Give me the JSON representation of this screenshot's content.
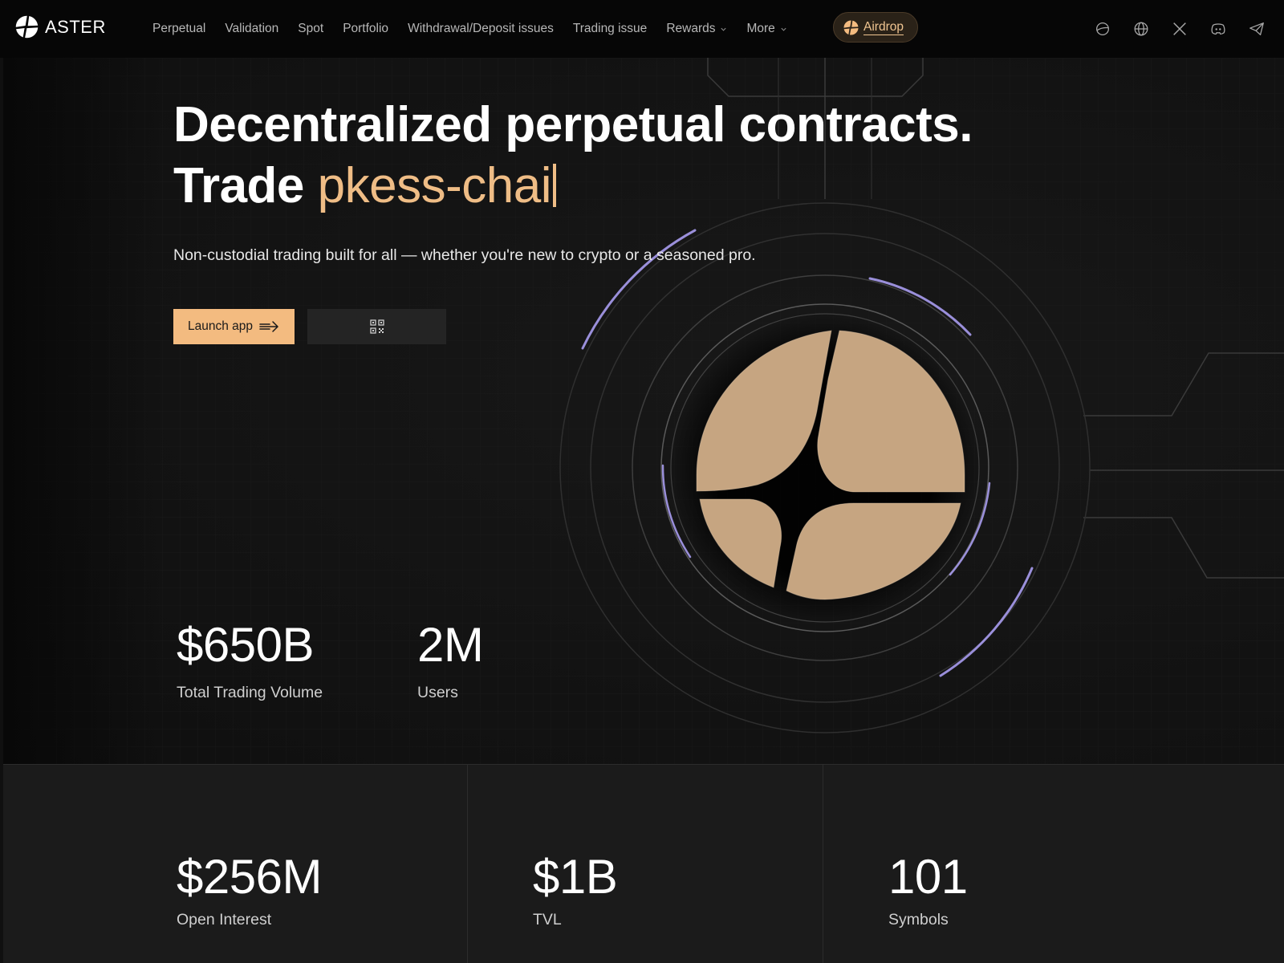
{
  "brand": {
    "name": "ASTER",
    "logo_icon": "aster-logo-icon",
    "accent": "#f3bb80"
  },
  "nav": {
    "links": [
      {
        "label": "Perpetual",
        "dropdown": false
      },
      {
        "label": "Validation",
        "dropdown": false
      },
      {
        "label": "Spot",
        "dropdown": false
      },
      {
        "label": "Portfolio",
        "dropdown": false
      },
      {
        "label": "Withdrawal/Deposit issues",
        "dropdown": false
      },
      {
        "label": "Trading issue",
        "dropdown": false
      },
      {
        "label": "Rewards",
        "dropdown": true
      },
      {
        "label": "More",
        "dropdown": true
      }
    ],
    "airdrop_label": "Airdrop",
    "icons": [
      "planet-icon",
      "globe-icon",
      "x-twitter-icon",
      "discord-icon",
      "telegram-icon"
    ]
  },
  "hero": {
    "headline_line1": "Decentralized perpetual contracts.",
    "headline_prefix": "Trade",
    "headline_typed": "pkess-chai",
    "subtitle": "Non-custodial trading built for all — whether you're new to crypto or a seasoned pro.",
    "launch_label": "Launch app",
    "qr_icon": "qr-code-icon",
    "stats": [
      {
        "value": "$650B",
        "label": "Total Trading Volume"
      },
      {
        "value": "2M",
        "label": "Users"
      }
    ]
  },
  "stats": [
    {
      "value": "$256M",
      "label": "Open Interest"
    },
    {
      "value": "$1B",
      "label": "TVL"
    },
    {
      "value": "101",
      "label": "Symbols"
    }
  ],
  "colors": {
    "background": "#101010",
    "typed_text": "#efbd86",
    "ring_glow": "#a99cf0",
    "emblem": "#c6a581"
  }
}
